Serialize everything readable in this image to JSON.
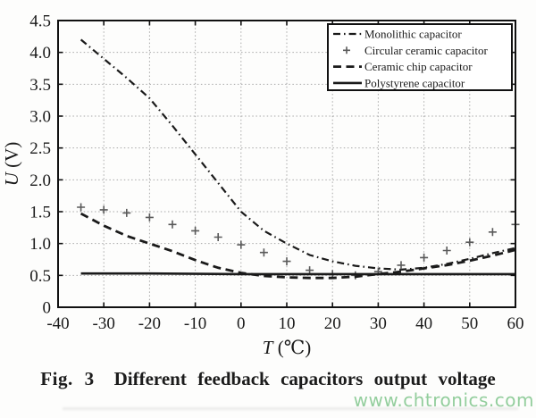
{
  "figure": {
    "caption_prefix": "Fig. 3",
    "caption_text": "Different feedback capacitors output voltage",
    "watermark": "www.chtronics.com"
  },
  "chart_data": {
    "type": "line",
    "title": "",
    "xlabel": "T (℃)",
    "ylabel": "U (V)",
    "xlim": [
      -40,
      60
    ],
    "ylim": [
      0,
      4.5
    ],
    "xticks": [
      -40,
      -30,
      -20,
      -10,
      0,
      10,
      20,
      30,
      40,
      50,
      60
    ],
    "xtick_labels": [
      "-40",
      "-30",
      "-20",
      "-10",
      "0",
      "10",
      "20",
      "30",
      "40",
      "50",
      "60"
    ],
    "yticks": [
      0,
      0.5,
      1.0,
      1.5,
      2.0,
      2.5,
      3.0,
      3.5,
      4.0,
      4.5
    ],
    "ytick_labels": [
      "0",
      "0.5",
      "1.0",
      "1.5",
      "2.0",
      "2.5",
      "3.0",
      "3.5",
      "4.0",
      "4.5"
    ],
    "grid": "dotted",
    "legend_position": "top-right",
    "series": [
      {
        "name": "Monolithic capacitor",
        "style": "dashdot",
        "marker": "none",
        "x": [
          -35,
          -30,
          -25,
          -20,
          -15,
          -10,
          -5,
          0,
          5,
          10,
          15,
          20,
          25,
          30,
          35,
          40,
          45,
          50,
          55,
          60
        ],
        "y": [
          4.2,
          3.9,
          3.6,
          3.28,
          2.85,
          2.4,
          1.95,
          1.5,
          1.2,
          1.0,
          0.82,
          0.72,
          0.65,
          0.61,
          0.59,
          0.62,
          0.68,
          0.76,
          0.85,
          0.93
        ]
      },
      {
        "name": "Circular ceramic capacitor",
        "style": "none",
        "marker": "plus",
        "x": [
          -35,
          -30,
          -25,
          -20,
          -15,
          -10,
          -5,
          0,
          5,
          10,
          15,
          20,
          25,
          30,
          35,
          40,
          45,
          50,
          55,
          60
        ],
        "y": [
          1.57,
          1.53,
          1.48,
          1.41,
          1.3,
          1.2,
          1.1,
          0.98,
          0.86,
          0.72,
          0.58,
          0.52,
          0.5,
          0.56,
          0.66,
          0.78,
          0.89,
          1.02,
          1.18,
          1.3
        ]
      },
      {
        "name": "Ceramic chip capacitor",
        "style": "dashed",
        "marker": "none",
        "x": [
          -35,
          -30,
          -25,
          -20,
          -15,
          -10,
          -5,
          0,
          5,
          10,
          15,
          20,
          25,
          30,
          35,
          40,
          45,
          50,
          55,
          60
        ],
        "y": [
          1.47,
          1.28,
          1.12,
          1.0,
          0.88,
          0.74,
          0.62,
          0.54,
          0.49,
          0.47,
          0.46,
          0.46,
          0.48,
          0.52,
          0.56,
          0.61,
          0.66,
          0.73,
          0.81,
          0.9
        ]
      },
      {
        "name": "Polystyrene capacitor",
        "style": "solid",
        "marker": "none",
        "x": [
          -35,
          -20,
          0,
          20,
          40,
          60
        ],
        "y": [
          0.53,
          0.53,
          0.52,
          0.52,
          0.52,
          0.52
        ]
      }
    ],
    "colors": {
      "line": "#1a1a1a",
      "marker": "#5a5a5a",
      "grid": "#a8a8a8",
      "axis": "#111111",
      "watermark": "#80c68c"
    }
  }
}
